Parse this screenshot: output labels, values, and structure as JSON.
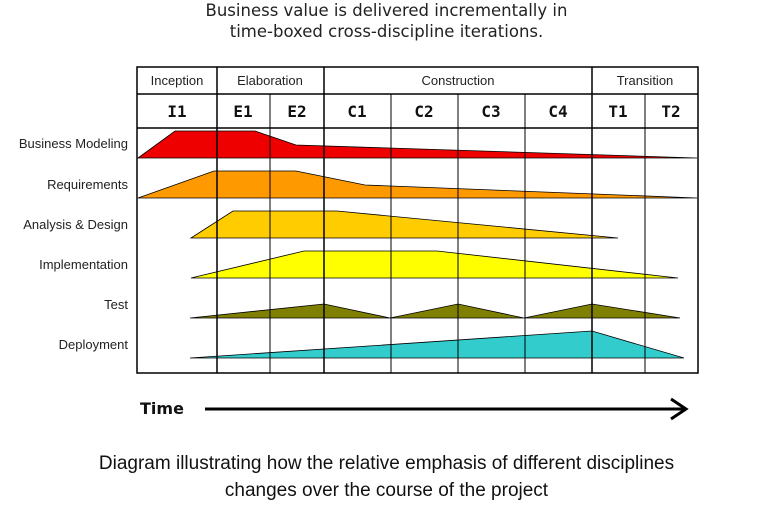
{
  "title": {
    "line1": "Business value is delivered incrementally in",
    "line2": "time-boxed cross-discipline iterations."
  },
  "phases": [
    "Inception",
    "Elaboration",
    "Construction",
    "Transition"
  ],
  "iterations": [
    "I1",
    "E1",
    "E2",
    "C1",
    "C2",
    "C3",
    "C4",
    "T1",
    "T2"
  ],
  "disciplines": [
    {
      "label": "Business Modeling",
      "color": "#ee0000"
    },
    {
      "label": "Requirements",
      "color": "#ff9900"
    },
    {
      "label": "Analysis & Design",
      "color": "#ffcc00"
    },
    {
      "label": "Implementation",
      "color": "#ffff00"
    },
    {
      "label": "Test",
      "color": "#808000"
    },
    {
      "label": "Deployment",
      "color": "#33cccc"
    }
  ],
  "time_label": "Time",
  "caption": {
    "line1": "Diagram illustrating how the relative emphasis of different disciplines",
    "line2": "changes over the course of the project"
  }
}
